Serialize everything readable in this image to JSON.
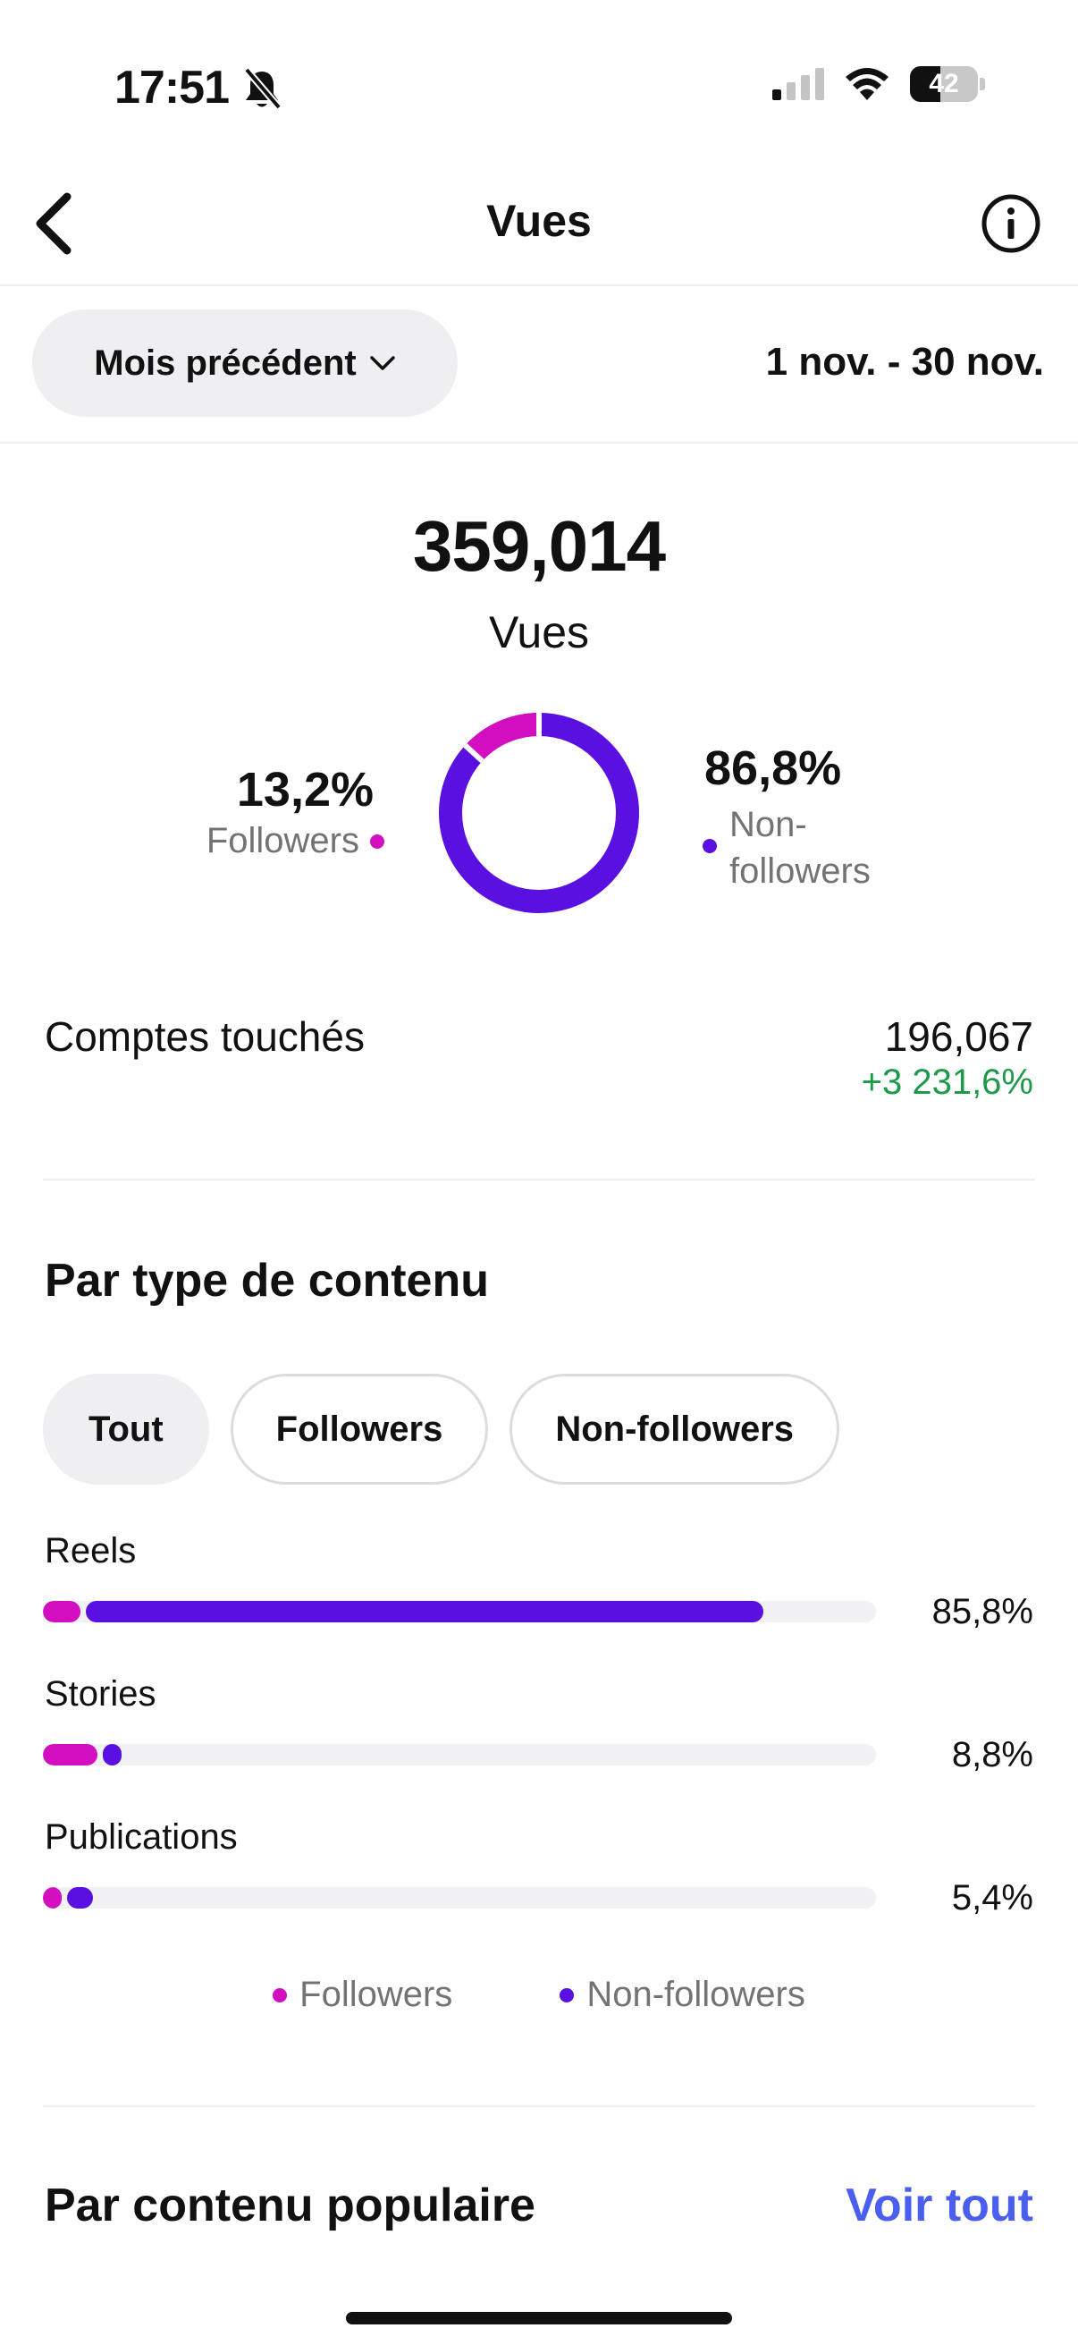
{
  "status_bar": {
    "time": "17:51",
    "battery": "42"
  },
  "nav": {
    "title": "Vues"
  },
  "period": {
    "selector_label": "Mois précédent",
    "date_range": "1 nov. - 30 nov."
  },
  "views": {
    "total": "359,014",
    "label": "Vues",
    "followers_pct": "13,2%",
    "followers_label": "Followers",
    "followers_share": 0.132,
    "nonfollowers_pct": "86,8%",
    "nonfollowers_label_line1": "Non-",
    "nonfollowers_label_line2": "followers"
  },
  "reach": {
    "label": "Comptes touchés",
    "value": "196,067",
    "change": "+3 231,6%"
  },
  "content_type": {
    "title": "Par type de contenu",
    "chips": [
      "Tout",
      "Followers",
      "Non-followers"
    ],
    "active_chip": "Tout",
    "rows": [
      {
        "label": "Reels",
        "pct": "85,8%",
        "followers_fraction": 0.045,
        "nonfollowers_fraction": 0.813
      },
      {
        "label": "Stories",
        "pct": "8,8%",
        "followers_fraction": 0.065,
        "nonfollowers_fraction": 0.023
      },
      {
        "label": "Publications",
        "pct": "5,4%",
        "followers_fraction": 0.022,
        "nonfollowers_fraction": 0.032
      }
    ],
    "legend": {
      "followers": "Followers",
      "nonfollowers": "Non-followers"
    }
  },
  "popular": {
    "title": "Par contenu populaire",
    "see_all": "Voir tout"
  },
  "colors": {
    "followers": "#d30dc0",
    "nonfollowers": "#5a10e0",
    "positive": "#1c9a4a",
    "link": "#4a5ef0"
  }
}
